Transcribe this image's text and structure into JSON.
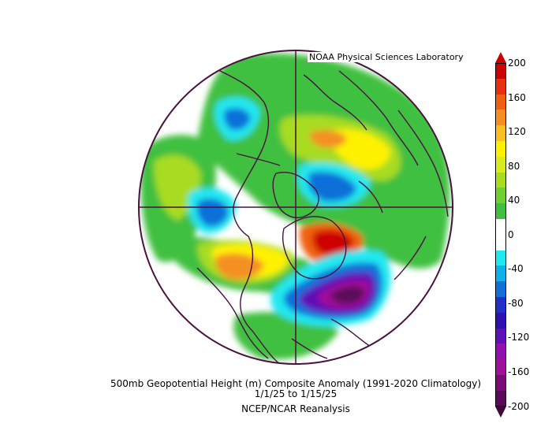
{
  "credit": "NOAA Physical Sciences Laboratory",
  "caption": {
    "line1": "500mb Geopotential Height (m) Composite Anomaly (1991-2020 Climatology)",
    "line2": "1/1/25   to 1/15/25",
    "line3": "NCEP/NCAR Reanalysis"
  },
  "colorbar": {
    "labels": [
      "200",
      "160",
      "120",
      "80",
      "40",
      "0",
      "-40",
      "-80",
      "-120",
      "-160",
      "-200"
    ],
    "colors": [
      "#cc0000",
      "#e83010",
      "#f06010",
      "#f49020",
      "#fac020",
      "#fff200",
      "#d8ec20",
      "#a8dc20",
      "#70d030",
      "#40c040",
      "#ffffff",
      "#ffffff",
      "#20e8f0",
      "#10b0e8",
      "#1070d8",
      "#2030c8",
      "#3010b0",
      "#6010b8",
      "#9010b0",
      "#a01098",
      "#7a0a78",
      "#5a0a58"
    ],
    "top_color": "#cc0000",
    "bottom_color": "#3d0a3a"
  },
  "chart_data": {
    "type": "heatmap",
    "variable": "500mb Geopotential Height Composite Anomaly",
    "units": "m",
    "climatology": "1991-2020",
    "period": "1/1/25 to 1/15/25",
    "source": "NCEP/NCAR Reanalysis",
    "projection": "north polar stereographic",
    "contour_levels": [
      -200,
      -180,
      -160,
      -140,
      -120,
      -100,
      -80,
      -60,
      -40,
      -20,
      0,
      20,
      40,
      60,
      80,
      100,
      120,
      140,
      160,
      180,
      200
    ],
    "colorbar_range": [
      -200,
      200
    ]
  }
}
